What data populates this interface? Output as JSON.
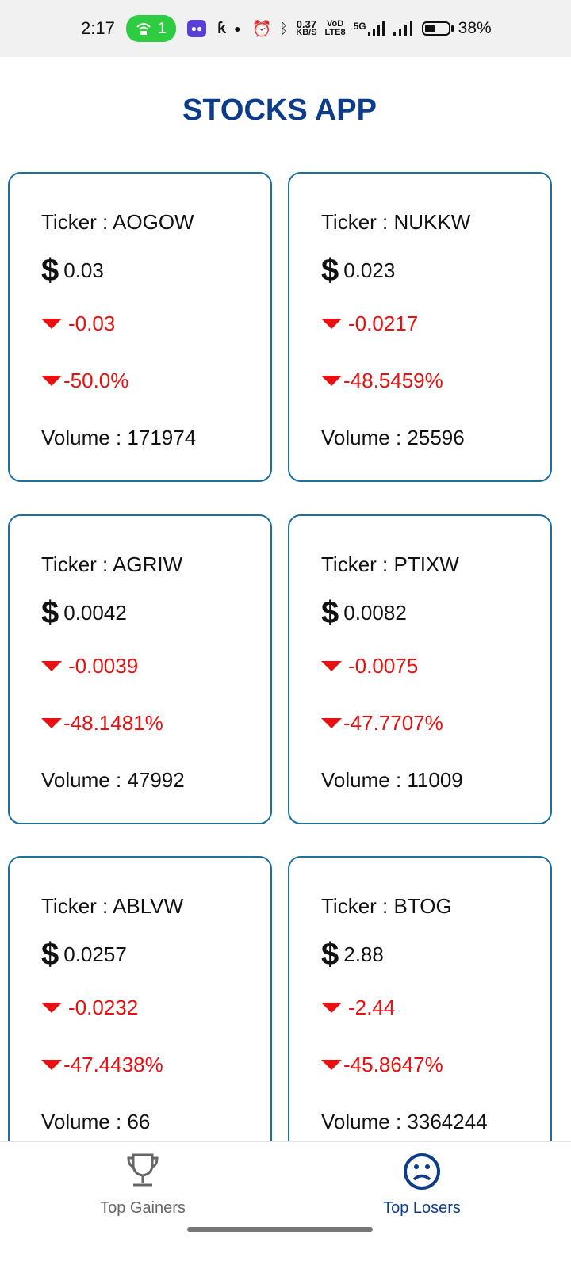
{
  "status_bar": {
    "time": "2:17",
    "hotspot_count": "1",
    "net_speed_value": "0.37",
    "net_speed_unit": "KB/S",
    "volte_top": "VoD",
    "volte_bottom": "LTE8",
    "network": "5G",
    "battery": "38%"
  },
  "app": {
    "title": "STOCKS APP"
  },
  "stocks": [
    {
      "ticker": "Ticker : AOGOW",
      "currency": "$",
      "price": "0.03",
      "change": "-0.03",
      "percent": "-50.0%",
      "volume": "Volume : 171974"
    },
    {
      "ticker": "Ticker : NUKKW",
      "currency": "$",
      "price": "0.023",
      "change": "-0.0217",
      "percent": "-48.5459%",
      "volume": "Volume : 25596"
    },
    {
      "ticker": "Ticker : AGRIW",
      "currency": "$",
      "price": "0.0042",
      "change": "-0.0039",
      "percent": "-48.1481%",
      "volume": "Volume : 47992"
    },
    {
      "ticker": "Ticker : PTIXW",
      "currency": "$",
      "price": "0.0082",
      "change": "-0.0075",
      "percent": "-47.7707%",
      "volume": "Volume : 11009"
    },
    {
      "ticker": "Ticker : ABLVW",
      "currency": "$",
      "price": "0.0257",
      "change": "-0.0232",
      "percent": "-47.4438%",
      "volume": "Volume : 66"
    },
    {
      "ticker": "Ticker : BTOG",
      "currency": "$",
      "price": "2.88",
      "change": "-2.44",
      "percent": "-45.8647%",
      "volume": "Volume : 3364244"
    }
  ],
  "nav": {
    "items": [
      {
        "label": "Top Gainers",
        "icon": "trophy-icon",
        "active": false
      },
      {
        "label": "Top Losers",
        "icon": "sad-face-icon",
        "active": true
      }
    ]
  },
  "colors": {
    "title": "#0d3d8a",
    "card_border": "#1d6f9c",
    "negative": "#e81010",
    "active_nav": "#0d3d8a"
  }
}
